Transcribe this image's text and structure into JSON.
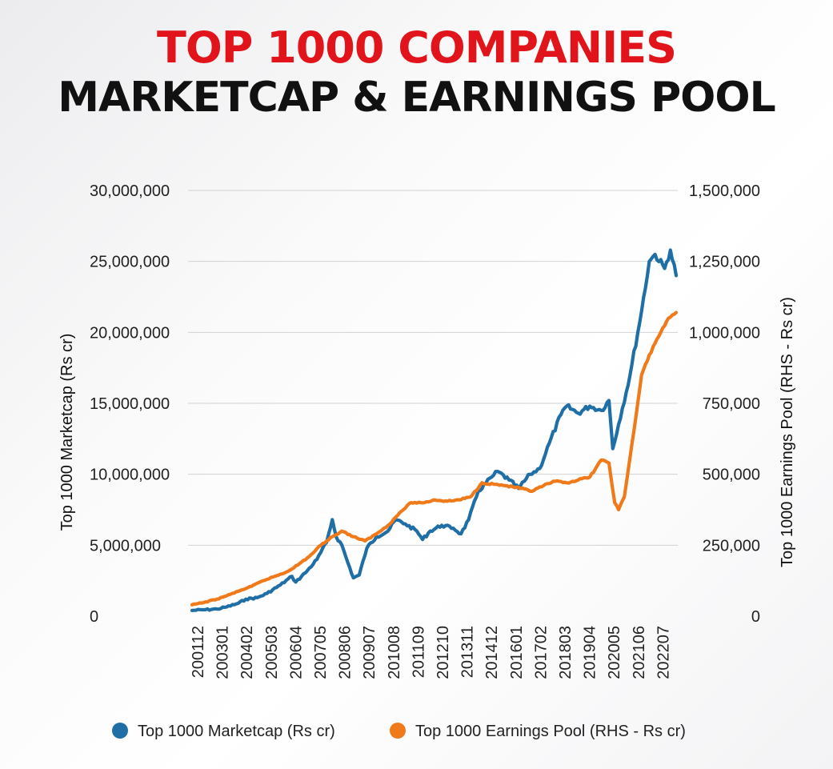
{
  "title": {
    "line1": "TOP 1000 COMPANIES",
    "line2": "MARKETCAP & EARNINGS POOL",
    "line1_color": "#e1141b",
    "line2_color": "#111111"
  },
  "chart_data": {
    "type": "line",
    "ylabel_left": "Top 1000 Marketcap (Rs cr)",
    "ylabel_right": "Top 1000 Earnings Pool (RHS - Rs cr)",
    "y_left_range": [
      0,
      30000000
    ],
    "y_right_range": [
      0,
      1500000
    ],
    "y_left_ticks": [
      "0",
      "5,000,000",
      "10,000,000",
      "15,000,000",
      "20,000,000",
      "25,000,000",
      "30,000,000"
    ],
    "y_right_ticks": [
      "0",
      "250,000",
      "500,000",
      "750,000",
      "1,000,000",
      "1,250,000",
      "1,500,000"
    ],
    "x_tick_labels": [
      "200112",
      "200301",
      "200402",
      "200503",
      "200604",
      "200705",
      "200806",
      "200907",
      "201008",
      "201109",
      "201210",
      "201311",
      "201412",
      "201601",
      "201702",
      "201803",
      "201904",
      "202005",
      "202106",
      "202207"
    ],
    "grid": "horizontal",
    "legend_position": "bottom",
    "series": [
      {
        "name": "Top 1000 Marketcap (Rs cr)",
        "axis": "left",
        "color": "#1f6fa6",
        "points": [
          [
            "2001-12",
            400000
          ],
          [
            "2002-06",
            450000
          ],
          [
            "2003-01",
            500000
          ],
          [
            "2003-06",
            650000
          ],
          [
            "2003-12",
            900000
          ],
          [
            "2004-04",
            1200000
          ],
          [
            "2004-10",
            1300000
          ],
          [
            "2005-03",
            1600000
          ],
          [
            "2005-10",
            2200000
          ],
          [
            "2006-04",
            2800000
          ],
          [
            "2006-06",
            2400000
          ],
          [
            "2006-12",
            3200000
          ],
          [
            "2007-05",
            4000000
          ],
          [
            "2007-10",
            5200000
          ],
          [
            "2008-01",
            6800000
          ],
          [
            "2008-03",
            5600000
          ],
          [
            "2008-06",
            5000000
          ],
          [
            "2008-09",
            3800000
          ],
          [
            "2008-12",
            2700000
          ],
          [
            "2009-03",
            2900000
          ],
          [
            "2009-07",
            4800000
          ],
          [
            "2009-12",
            5600000
          ],
          [
            "2010-06",
            6000000
          ],
          [
            "2010-10",
            6800000
          ],
          [
            "2011-03",
            6500000
          ],
          [
            "2011-09",
            6000000
          ],
          [
            "2011-12",
            5400000
          ],
          [
            "2012-04",
            6000000
          ],
          [
            "2012-10",
            6400000
          ],
          [
            "2013-04",
            6200000
          ],
          [
            "2013-08",
            5800000
          ],
          [
            "2013-12",
            6800000
          ],
          [
            "2014-05",
            8800000
          ],
          [
            "2014-12",
            9800000
          ],
          [
            "2015-03",
            10200000
          ],
          [
            "2015-09",
            9600000
          ],
          [
            "2016-02",
            9000000
          ],
          [
            "2016-08",
            10000000
          ],
          [
            "2017-01",
            10400000
          ],
          [
            "2017-06",
            12200000
          ],
          [
            "2017-12",
            14200000
          ],
          [
            "2018-03",
            14800000
          ],
          [
            "2018-09",
            14300000
          ],
          [
            "2019-03",
            14800000
          ],
          [
            "2019-09",
            14500000
          ],
          [
            "2020-01",
            15200000
          ],
          [
            "2020-03",
            11800000
          ],
          [
            "2020-06",
            13500000
          ],
          [
            "2020-12",
            17000000
          ],
          [
            "2021-06",
            21500000
          ],
          [
            "2021-10",
            25000000
          ],
          [
            "2022-01",
            25500000
          ],
          [
            "2022-06",
            24500000
          ],
          [
            "2022-09",
            25800000
          ],
          [
            "2022-12",
            24000000
          ]
        ]
      },
      {
        "name": "Top 1000 Earnings Pool (RHS - Rs cr)",
        "axis": "right",
        "color": "#f07a1a",
        "points": [
          [
            "2001-12",
            40000
          ],
          [
            "2002-06",
            48000
          ],
          [
            "2003-01",
            60000
          ],
          [
            "2003-06",
            72000
          ],
          [
            "2004-01",
            90000
          ],
          [
            "2004-07",
            105000
          ],
          [
            "2005-01",
            125000
          ],
          [
            "2005-07",
            140000
          ],
          [
            "2006-01",
            155000
          ],
          [
            "2006-07",
            180000
          ],
          [
            "2007-01",
            210000
          ],
          [
            "2007-07",
            250000
          ],
          [
            "2008-01",
            280000
          ],
          [
            "2008-06",
            300000
          ],
          [
            "2008-12",
            280000
          ],
          [
            "2009-06",
            265000
          ],
          [
            "2009-12",
            290000
          ],
          [
            "2010-06",
            320000
          ],
          [
            "2011-01",
            370000
          ],
          [
            "2011-06",
            400000
          ],
          [
            "2012-01",
            400000
          ],
          [
            "2012-06",
            410000
          ],
          [
            "2013-01",
            405000
          ],
          [
            "2013-07",
            410000
          ],
          [
            "2014-01",
            420000
          ],
          [
            "2014-07",
            470000
          ],
          [
            "2015-01",
            465000
          ],
          [
            "2015-07",
            460000
          ],
          [
            "2016-03",
            450000
          ],
          [
            "2016-09",
            440000
          ],
          [
            "2017-03",
            460000
          ],
          [
            "2017-09",
            475000
          ],
          [
            "2018-03",
            470000
          ],
          [
            "2018-09",
            480000
          ],
          [
            "2019-03",
            490000
          ],
          [
            "2019-09",
            550000
          ],
          [
            "2020-01",
            540000
          ],
          [
            "2020-04",
            400000
          ],
          [
            "2020-06",
            375000
          ],
          [
            "2020-09",
            420000
          ],
          [
            "2020-12",
            560000
          ],
          [
            "2021-03",
            700000
          ],
          [
            "2021-06",
            850000
          ],
          [
            "2021-12",
            950000
          ],
          [
            "2022-04",
            1000000
          ],
          [
            "2022-08",
            1050000
          ],
          [
            "2022-12",
            1070000
          ]
        ]
      }
    ]
  },
  "legend": {
    "items": [
      {
        "label": "Top 1000 Marketcap (Rs cr)",
        "color": "#1f6fa6"
      },
      {
        "label": "Top 1000 Earnings Pool (RHS - Rs cr)",
        "color": "#f07a1a"
      }
    ]
  }
}
